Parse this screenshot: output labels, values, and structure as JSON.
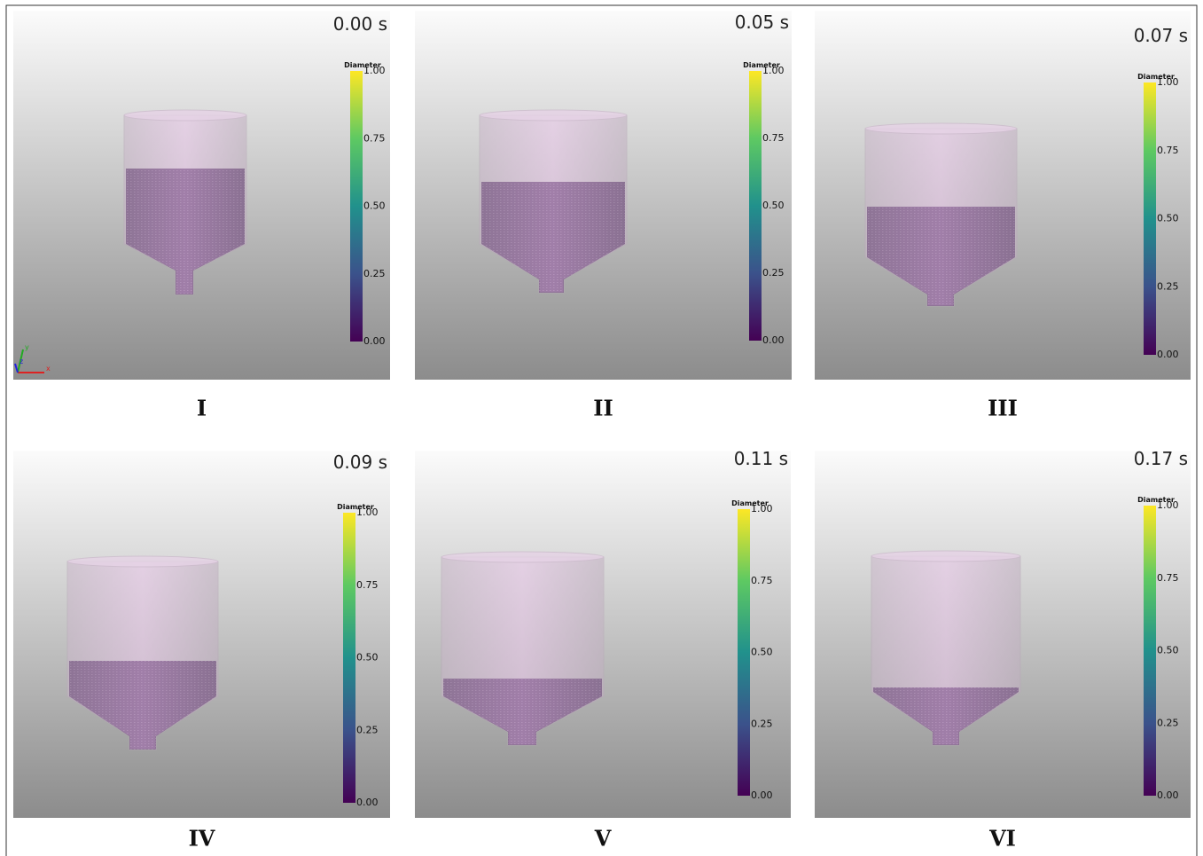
{
  "panels": [
    {
      "time": "0.00 s",
      "colorbar": {
        "title": "Diameter",
        "ticks": [
          "1.00",
          "0.75",
          "0.50",
          "0.25",
          "0.00"
        ]
      },
      "caption": "I"
    },
    {
      "time": "0.05 s",
      "colorbar": {
        "title": "Diameter",
        "ticks": [
          "1.00",
          "0.75",
          "0.50",
          "0.25",
          "0.00"
        ]
      },
      "caption": "II"
    },
    {
      "time": "0.07 s",
      "colorbar": {
        "title": "Diameter",
        "ticks": [
          "1.00",
          "0.75",
          "0.50",
          "0.25",
          "0.00"
        ]
      },
      "caption": "III"
    },
    {
      "time": "0.09 s",
      "colorbar": {
        "title": "Diameter",
        "ticks": [
          "1.00",
          "0.75",
          "0.50",
          "0.25",
          "0.00"
        ]
      },
      "caption": "IV"
    },
    {
      "time": "0.11 s",
      "colorbar": {
        "title": "Diameter",
        "ticks": [
          "1.00",
          "0.75",
          "0.50",
          "0.25",
          "0.00"
        ]
      },
      "caption": "V"
    },
    {
      "time": "0.17 s",
      "colorbar": {
        "title": "Diameter",
        "ticks": [
          "1.00",
          "0.75",
          "0.50",
          "0.25",
          "0.00"
        ]
      },
      "caption": "VI"
    }
  ],
  "orientation_axes": [
    "x",
    "y",
    "z"
  ]
}
